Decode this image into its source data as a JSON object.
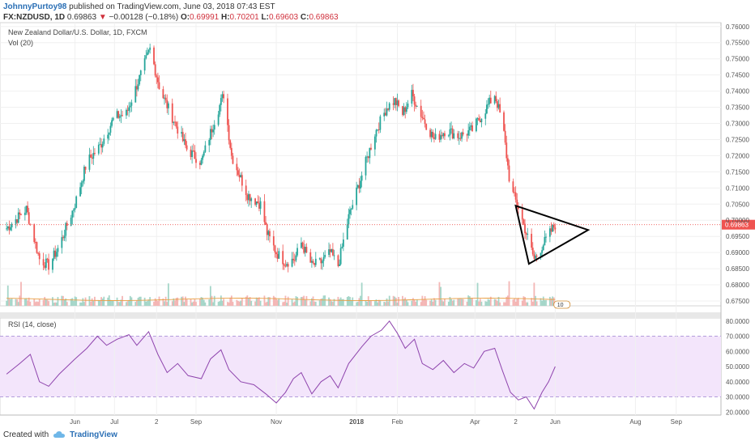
{
  "header": {
    "author": "JohnnyPurtoy98",
    "published": "published on TradingView.com, June 03, 2018 07:43 EST",
    "symbol": "FX:NZDUSD, 1D",
    "last": "0.69863",
    "change": "−0.00128 (−0.18%)",
    "o_label": "O:",
    "o_val": "0.69991",
    "h_label": "H:",
    "h_val": "0.70201",
    "l_label": "L:",
    "l_val": "0.69603",
    "c_label": "C:",
    "c_val": "0.69863"
  },
  "legend": {
    "instrument": "New Zealand Dollar/U.S. Dollar, 1D, FXCM",
    "volume": "Vol (20)",
    "rsi": "RSI (14, close)",
    "price_tag": "0.69863",
    "vol_badge": "10"
  },
  "footer": {
    "created_with": "Created with",
    "brand": "TradingView"
  },
  "colors": {
    "up": "#26a69a",
    "down": "#ef5350",
    "rsi_line": "#8e44ad",
    "rsi_band": "#f3e5fb"
  },
  "chart_data": [
    {
      "type": "candlestick",
      "title": "New Zealand Dollar/U.S. Dollar, 1D, FXCM",
      "ylim": [
        0.6735,
        0.7612
      ],
      "yticks": [
        "0.76000",
        "0.75500",
        "0.75000",
        "0.74500",
        "0.74000",
        "0.73500",
        "0.73000",
        "0.72500",
        "0.72000",
        "0.71500",
        "0.71000",
        "0.70500",
        "0.70000",
        "0.69500",
        "0.69000",
        "0.68500",
        "0.68000",
        "0.67500"
      ],
      "xticks": [
        {
          "label": "Jun",
          "x": "2017-06-01"
        },
        {
          "label": "Jul",
          "x": "2017-07-01"
        },
        {
          "label": "2",
          "x": "2017-08-02"
        },
        {
          "label": "Sep",
          "x": "2017-09-01"
        },
        {
          "label": "Nov",
          "x": "2017-11-01"
        },
        {
          "label": "2018",
          "x": "2018-01-01"
        },
        {
          "label": "Feb",
          "x": "2018-02-01"
        },
        {
          "label": "Apr",
          "x": "2018-04-01"
        },
        {
          "label": "2",
          "x": "2018-05-02"
        },
        {
          "label": "Jun",
          "x": "2018-06-01"
        },
        {
          "label": "Aug",
          "x": "2018-08-01"
        },
        {
          "label": "Sep",
          "x": "2018-09-01"
        }
      ],
      "close_path": [
        [
          "2017-04-10",
          0.6975
        ],
        [
          "2017-04-25",
          0.7035
        ],
        [
          "2017-05-05",
          0.688
        ],
        [
          "2017-05-12",
          0.686
        ],
        [
          "2017-05-20",
          0.692
        ],
        [
          "2017-06-01",
          0.705
        ],
        [
          "2017-06-10",
          0.718
        ],
        [
          "2017-06-20",
          0.723
        ],
        [
          "2017-07-01",
          0.732
        ],
        [
          "2017-07-10",
          0.733
        ],
        [
          "2017-07-20",
          0.744
        ],
        [
          "2017-07-28",
          0.753
        ],
        [
          "2017-08-05",
          0.74
        ],
        [
          "2017-08-15",
          0.731
        ],
        [
          "2017-08-25",
          0.722
        ],
        [
          "2017-09-05",
          0.718
        ],
        [
          "2017-09-15",
          0.731
        ],
        [
          "2017-09-22",
          0.739
        ],
        [
          "2017-09-28",
          0.72
        ],
        [
          "2017-10-10",
          0.708
        ],
        [
          "2017-10-20",
          0.705
        ],
        [
          "2017-10-25",
          0.696
        ],
        [
          "2017-11-01",
          0.69
        ],
        [
          "2017-11-08",
          0.687
        ],
        [
          "2017-11-15",
          0.688
        ],
        [
          "2017-11-20",
          0.693
        ],
        [
          "2017-11-28",
          0.686
        ],
        [
          "2017-12-05",
          0.687
        ],
        [
          "2017-12-12",
          0.69
        ],
        [
          "2017-12-18",
          0.686
        ],
        [
          "2017-12-26",
          0.701
        ],
        [
          "2018-01-05",
          0.714
        ],
        [
          "2018-01-15",
          0.727
        ],
        [
          "2018-01-24",
          0.735
        ],
        [
          "2018-01-30",
          0.737
        ],
        [
          "2018-02-05",
          0.733
        ],
        [
          "2018-02-12",
          0.739
        ],
        [
          "2018-02-20",
          0.732
        ],
        [
          "2018-03-01",
          0.725
        ],
        [
          "2018-03-10",
          0.728
        ],
        [
          "2018-03-20",
          0.726
        ],
        [
          "2018-03-30",
          0.728
        ],
        [
          "2018-04-10",
          0.735
        ],
        [
          "2018-04-16",
          0.739
        ],
        [
          "2018-04-22",
          0.73
        ],
        [
          "2018-04-28",
          0.71
        ],
        [
          "2018-05-04",
          0.704
        ],
        [
          "2018-05-10",
          0.696
        ],
        [
          "2018-05-16",
          0.688
        ],
        [
          "2018-05-22",
          0.692
        ],
        [
          "2018-05-28",
          0.696
        ],
        [
          "2018-06-01",
          0.6986
        ]
      ],
      "horizontal_line": 0.69863,
      "annotation_triangle": [
        [
          "2018-05-02",
          0.7045
        ],
        [
          "2018-06-26",
          0.697
        ],
        [
          "2018-05-12",
          0.6865
        ]
      ]
    },
    {
      "type": "bar",
      "title": "Vol (20)",
      "note": "daily volume histogram with 20-period moving average, no axis values shown"
    },
    {
      "type": "line",
      "title": "RSI (14, close)",
      "ylim": [
        18,
        82
      ],
      "yticks": [
        "80.0000",
        "70.0000",
        "60.0000",
        "50.0000",
        "40.0000",
        "30.0000",
        "20.0000"
      ],
      "bands": [
        30,
        70
      ],
      "points": [
        [
          "2017-04-10",
          45
        ],
        [
          "2017-04-20",
          52
        ],
        [
          "2017-04-28",
          58
        ],
        [
          "2017-05-05",
          40
        ],
        [
          "2017-05-12",
          37
        ],
        [
          "2017-05-20",
          45
        ],
        [
          "2017-06-01",
          55
        ],
        [
          "2017-06-10",
          62
        ],
        [
          "2017-06-18",
          70
        ],
        [
          "2017-06-25",
          64
        ],
        [
          "2017-07-03",
          68
        ],
        [
          "2017-07-12",
          71
        ],
        [
          "2017-07-18",
          64
        ],
        [
          "2017-07-27",
          73
        ],
        [
          "2017-08-03",
          58
        ],
        [
          "2017-08-10",
          46
        ],
        [
          "2017-08-18",
          52
        ],
        [
          "2017-08-26",
          44
        ],
        [
          "2017-09-05",
          42
        ],
        [
          "2017-09-12",
          55
        ],
        [
          "2017-09-20",
          61
        ],
        [
          "2017-09-26",
          48
        ],
        [
          "2017-10-05",
          40
        ],
        [
          "2017-10-15",
          38
        ],
        [
          "2017-10-24",
          32
        ],
        [
          "2017-11-01",
          26
        ],
        [
          "2017-11-08",
          33
        ],
        [
          "2017-11-14",
          42
        ],
        [
          "2017-11-20",
          46
        ],
        [
          "2017-11-28",
          32
        ],
        [
          "2017-12-05",
          40
        ],
        [
          "2017-12-12",
          44
        ],
        [
          "2017-12-18",
          36
        ],
        [
          "2017-12-26",
          52
        ],
        [
          "2018-01-05",
          63
        ],
        [
          "2018-01-12",
          70
        ],
        [
          "2018-01-20",
          74
        ],
        [
          "2018-01-26",
          80
        ],
        [
          "2018-02-01",
          72
        ],
        [
          "2018-02-07",
          62
        ],
        [
          "2018-02-14",
          68
        ],
        [
          "2018-02-20",
          52
        ],
        [
          "2018-02-28",
          48
        ],
        [
          "2018-03-08",
          54
        ],
        [
          "2018-03-16",
          46
        ],
        [
          "2018-03-24",
          52
        ],
        [
          "2018-03-31",
          49
        ],
        [
          "2018-04-08",
          60
        ],
        [
          "2018-04-16",
          62
        ],
        [
          "2018-04-22",
          47
        ],
        [
          "2018-04-28",
          33
        ],
        [
          "2018-05-04",
          28
        ],
        [
          "2018-05-10",
          30
        ],
        [
          "2018-05-16",
          22
        ],
        [
          "2018-05-22",
          33
        ],
        [
          "2018-05-27",
          40
        ],
        [
          "2018-06-01",
          50
        ]
      ]
    }
  ]
}
